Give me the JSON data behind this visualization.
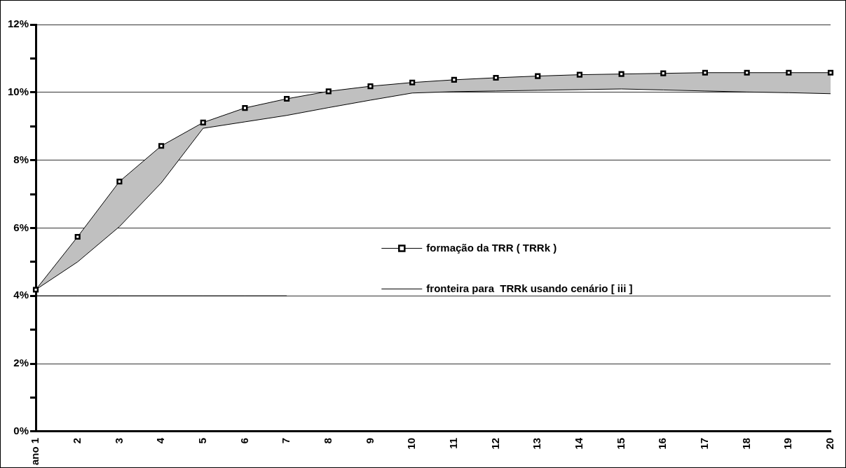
{
  "chart_data": {
    "type": "line",
    "categories": [
      "ano 1",
      "2",
      "3",
      "4",
      "5",
      "6",
      "7",
      "8",
      "9",
      "10",
      "11",
      "12",
      "13",
      "14",
      "15",
      "16",
      "17",
      "18",
      "19",
      "20"
    ],
    "series": [
      {
        "name": "formação da TRR ( TRRk )",
        "color": "#000000",
        "marker": "square",
        "values": [
          4.18,
          5.74,
          7.37,
          8.42,
          9.11,
          9.54,
          9.81,
          10.03,
          10.18,
          10.29,
          10.37,
          10.43,
          10.48,
          10.52,
          10.54,
          10.56,
          10.58,
          10.58,
          10.58,
          10.58
        ],
        "lower": [
          4.18,
          5.0,
          6.04,
          7.33,
          8.94,
          9.13,
          9.32,
          9.55,
          9.77,
          9.98,
          10.02,
          10.04,
          10.06,
          10.08,
          10.1,
          10.07,
          10.04,
          10.01,
          9.99,
          9.96
        ],
        "upper": [
          4.18,
          5.74,
          7.37,
          8.42,
          9.11,
          9.54,
          9.81,
          10.03,
          10.18,
          10.29,
          10.37,
          10.43,
          10.48,
          10.52,
          10.54,
          10.56,
          10.58,
          10.58,
          10.58,
          10.58
        ]
      },
      {
        "name": "fronteira para  TRRk usando cenário [ iii ]",
        "color": "#000000",
        "marker": "none",
        "values": [
          4.18,
          5.0,
          6.04,
          7.33,
          8.94,
          9.13,
          9.32,
          9.55,
          9.77,
          9.98,
          10.02,
          10.04,
          10.06,
          10.08,
          10.1,
          10.07,
          10.04,
          10.01,
          9.99,
          9.96
        ]
      },
      {
        "color": "#000000",
        "marker": "none",
        "values": [
          4,
          4,
          4,
          4,
          4,
          4,
          4,
          null,
          null,
          null,
          null,
          null,
          null,
          null,
          null,
          null,
          null,
          null,
          null,
          null
        ]
      }
    ],
    "ylim": [
      0,
      12
    ],
    "yticks": [
      {
        "value": 0,
        "label": "0%"
      },
      {
        "value": 1,
        "label": null
      },
      {
        "value": 2,
        "label": "2%"
      },
      {
        "value": 3,
        "label": null
      },
      {
        "value": 4,
        "label": "4%"
      },
      {
        "value": 5,
        "label": null
      },
      {
        "value": 6,
        "label": "6%"
      },
      {
        "value": 7,
        "label": null
      },
      {
        "value": 8,
        "label": "8%"
      },
      {
        "value": 9,
        "label": null
      },
      {
        "value": 10,
        "label": "10%"
      },
      {
        "value": 11,
        "label": null
      },
      {
        "value": 12,
        "label": "12%"
      }
    ],
    "grid": "y",
    "legend": "center",
    "line_style": "solid"
  }
}
